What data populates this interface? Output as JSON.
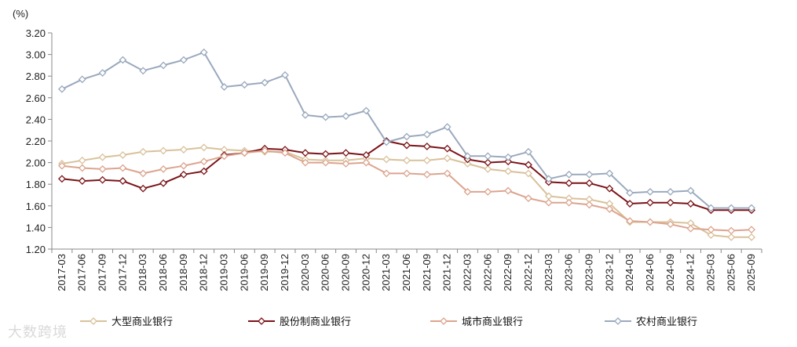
{
  "chart_data": {
    "type": "line",
    "unit_label": "(%)",
    "ylim": [
      1.2,
      3.2
    ],
    "ytick_step": 0.2,
    "grid": false,
    "legend_position": "bottom",
    "x": [
      "2017-03",
      "2017-06",
      "2017-09",
      "2017-12",
      "2018-03",
      "2018-06",
      "2018-09",
      "2018-12",
      "2019-03",
      "2019-06",
      "2019-09",
      "2019-12",
      "2020-03",
      "2020-06",
      "2020-09",
      "2020-12",
      "2021-03",
      "2021-06",
      "2021-09",
      "2021-12",
      "2022-03",
      "2022-06",
      "2022-09",
      "2022-12",
      "2023-03",
      "2023-06",
      "2023-09",
      "2023-12",
      "2024-03",
      "2024-06",
      "2024-09",
      "2024-12",
      "2025-03",
      "2025-06",
      "2025-09"
    ],
    "series": [
      {
        "name": "大型商业银行",
        "color": "#d9c19a",
        "values": [
          1.99,
          2.02,
          2.05,
          2.07,
          2.1,
          2.11,
          2.12,
          2.14,
          2.12,
          2.11,
          2.1,
          2.1,
          2.03,
          2.02,
          2.02,
          2.04,
          2.03,
          2.02,
          2.02,
          2.04,
          1.99,
          1.94,
          1.92,
          1.9,
          1.69,
          1.67,
          1.66,
          1.62,
          1.45,
          1.45,
          1.45,
          1.44,
          1.33,
          1.31,
          1.31
        ]
      },
      {
        "name": "股份制商业银行",
        "color": "#7a1418",
        "values": [
          1.85,
          1.83,
          1.84,
          1.83,
          1.76,
          1.81,
          1.89,
          1.92,
          2.07,
          2.09,
          2.13,
          2.12,
          2.09,
          2.08,
          2.09,
          2.07,
          2.2,
          2.16,
          2.15,
          2.13,
          2.03,
          2.0,
          2.01,
          1.98,
          1.82,
          1.81,
          1.81,
          1.76,
          1.62,
          1.63,
          1.63,
          1.62,
          1.56,
          1.56,
          1.56
        ]
      },
      {
        "name": "城市商业银行",
        "color": "#dca48e",
        "values": [
          1.97,
          1.95,
          1.94,
          1.95,
          1.9,
          1.94,
          1.97,
          2.01,
          2.06,
          2.09,
          2.11,
          2.09,
          2.0,
          2.0,
          1.99,
          2.0,
          1.9,
          1.9,
          1.89,
          1.9,
          1.73,
          1.73,
          1.74,
          1.67,
          1.63,
          1.63,
          1.61,
          1.57,
          1.46,
          1.45,
          1.43,
          1.39,
          1.38,
          1.37,
          1.38
        ]
      },
      {
        "name": "农村商业银行",
        "color": "#9aa9bd",
        "values": [
          2.68,
          2.77,
          2.83,
          2.95,
          2.85,
          2.9,
          2.95,
          3.02,
          2.7,
          2.72,
          2.74,
          2.81,
          2.44,
          2.42,
          2.43,
          2.48,
          2.19,
          2.24,
          2.26,
          2.33,
          2.06,
          2.06,
          2.05,
          2.1,
          1.85,
          1.89,
          1.89,
          1.9,
          1.72,
          1.73,
          1.73,
          1.74,
          1.58,
          1.58,
          1.58
        ]
      }
    ]
  },
  "watermark": "大数跨境"
}
